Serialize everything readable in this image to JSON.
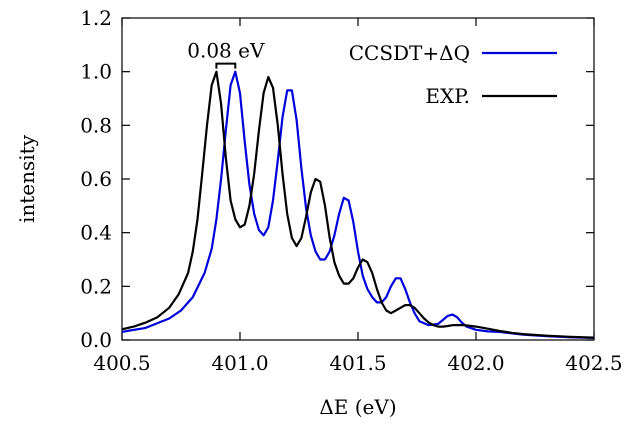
{
  "chart_data": {
    "type": "line",
    "title": "",
    "xlabel": "ΔE (eV)",
    "ylabel": "intensity",
    "xlim": [
      400.5,
      402.5
    ],
    "ylim": [
      0.0,
      1.2
    ],
    "x_ticks": [
      400.5,
      401.0,
      401.5,
      402.0,
      402.5
    ],
    "x_tick_labels": [
      "400.5",
      "401.0",
      "401.5",
      "402.0",
      "402.5"
    ],
    "y_ticks": [
      0.0,
      0.2,
      0.4,
      0.6,
      0.8,
      1.0,
      1.2
    ],
    "y_tick_labels": [
      "0.0",
      "0.2",
      "0.4",
      "0.6",
      "0.8",
      "1.0",
      "1.2"
    ],
    "grid": false,
    "legend_position": "top-right",
    "annotation": {
      "label": "0.08 eV",
      "x_from": 400.9,
      "x_to": 400.98,
      "y": 1.03
    },
    "series": [
      {
        "name": "CCSDT+ΔQ",
        "color": "#0000dd",
        "x": [
          400.5,
          400.6,
          400.7,
          400.75,
          400.8,
          400.85,
          400.88,
          400.9,
          400.92,
          400.94,
          400.96,
          400.98,
          401.0,
          401.02,
          401.04,
          401.06,
          401.08,
          401.1,
          401.12,
          401.14,
          401.16,
          401.18,
          401.2,
          401.22,
          401.24,
          401.26,
          401.28,
          401.3,
          401.32,
          401.34,
          401.36,
          401.38,
          401.4,
          401.42,
          401.44,
          401.46,
          401.48,
          401.5,
          401.52,
          401.54,
          401.56,
          401.58,
          401.6,
          401.62,
          401.64,
          401.66,
          401.68,
          401.7,
          401.72,
          401.74,
          401.76,
          401.8,
          401.84,
          401.86,
          401.88,
          401.9,
          401.92,
          401.94,
          401.96,
          402.0,
          402.05,
          402.1,
          402.15,
          402.2,
          402.3,
          402.4,
          402.5
        ],
        "y": [
          0.03,
          0.045,
          0.08,
          0.11,
          0.16,
          0.25,
          0.34,
          0.45,
          0.6,
          0.78,
          0.95,
          1.0,
          0.92,
          0.74,
          0.58,
          0.47,
          0.41,
          0.39,
          0.42,
          0.52,
          0.67,
          0.83,
          0.93,
          0.93,
          0.82,
          0.64,
          0.49,
          0.39,
          0.33,
          0.3,
          0.3,
          0.33,
          0.39,
          0.47,
          0.53,
          0.52,
          0.44,
          0.33,
          0.24,
          0.19,
          0.16,
          0.14,
          0.14,
          0.16,
          0.2,
          0.23,
          0.23,
          0.19,
          0.14,
          0.1,
          0.07,
          0.055,
          0.06,
          0.075,
          0.09,
          0.095,
          0.085,
          0.065,
          0.05,
          0.038,
          0.032,
          0.03,
          0.025,
          0.02,
          0.014,
          0.01,
          0.008
        ]
      },
      {
        "name": "EXP.",
        "color": "#000000",
        "x": [
          400.5,
          400.55,
          400.6,
          400.65,
          400.7,
          400.74,
          400.78,
          400.8,
          400.82,
          400.84,
          400.86,
          400.88,
          400.9,
          400.92,
          400.94,
          400.96,
          400.98,
          401.0,
          401.02,
          401.04,
          401.06,
          401.08,
          401.1,
          401.12,
          401.14,
          401.16,
          401.18,
          401.2,
          401.22,
          401.24,
          401.26,
          401.28,
          401.3,
          401.32,
          401.34,
          401.36,
          401.38,
          401.4,
          401.42,
          401.44,
          401.46,
          401.48,
          401.5,
          401.52,
          401.54,
          401.56,
          401.58,
          401.6,
          401.62,
          401.64,
          401.66,
          401.68,
          401.7,
          401.72,
          401.74,
          401.76,
          401.78,
          401.8,
          401.82,
          401.84,
          401.86,
          401.88,
          401.9,
          401.92,
          401.95,
          401.98,
          402.0,
          402.05,
          402.1,
          402.15,
          402.2,
          402.3,
          402.4,
          402.5
        ],
        "y": [
          0.04,
          0.05,
          0.065,
          0.085,
          0.12,
          0.17,
          0.25,
          0.33,
          0.45,
          0.62,
          0.8,
          0.95,
          1.0,
          0.88,
          0.68,
          0.52,
          0.45,
          0.42,
          0.43,
          0.5,
          0.62,
          0.78,
          0.92,
          0.98,
          0.94,
          0.8,
          0.62,
          0.47,
          0.38,
          0.35,
          0.38,
          0.46,
          0.55,
          0.6,
          0.59,
          0.5,
          0.38,
          0.29,
          0.24,
          0.21,
          0.21,
          0.23,
          0.27,
          0.3,
          0.29,
          0.25,
          0.19,
          0.14,
          0.11,
          0.1,
          0.11,
          0.12,
          0.13,
          0.13,
          0.12,
          0.1,
          0.08,
          0.065,
          0.055,
          0.05,
          0.05,
          0.052,
          0.055,
          0.056,
          0.055,
          0.052,
          0.05,
          0.042,
          0.034,
          0.027,
          0.022,
          0.016,
          0.012,
          0.009
        ]
      }
    ]
  }
}
